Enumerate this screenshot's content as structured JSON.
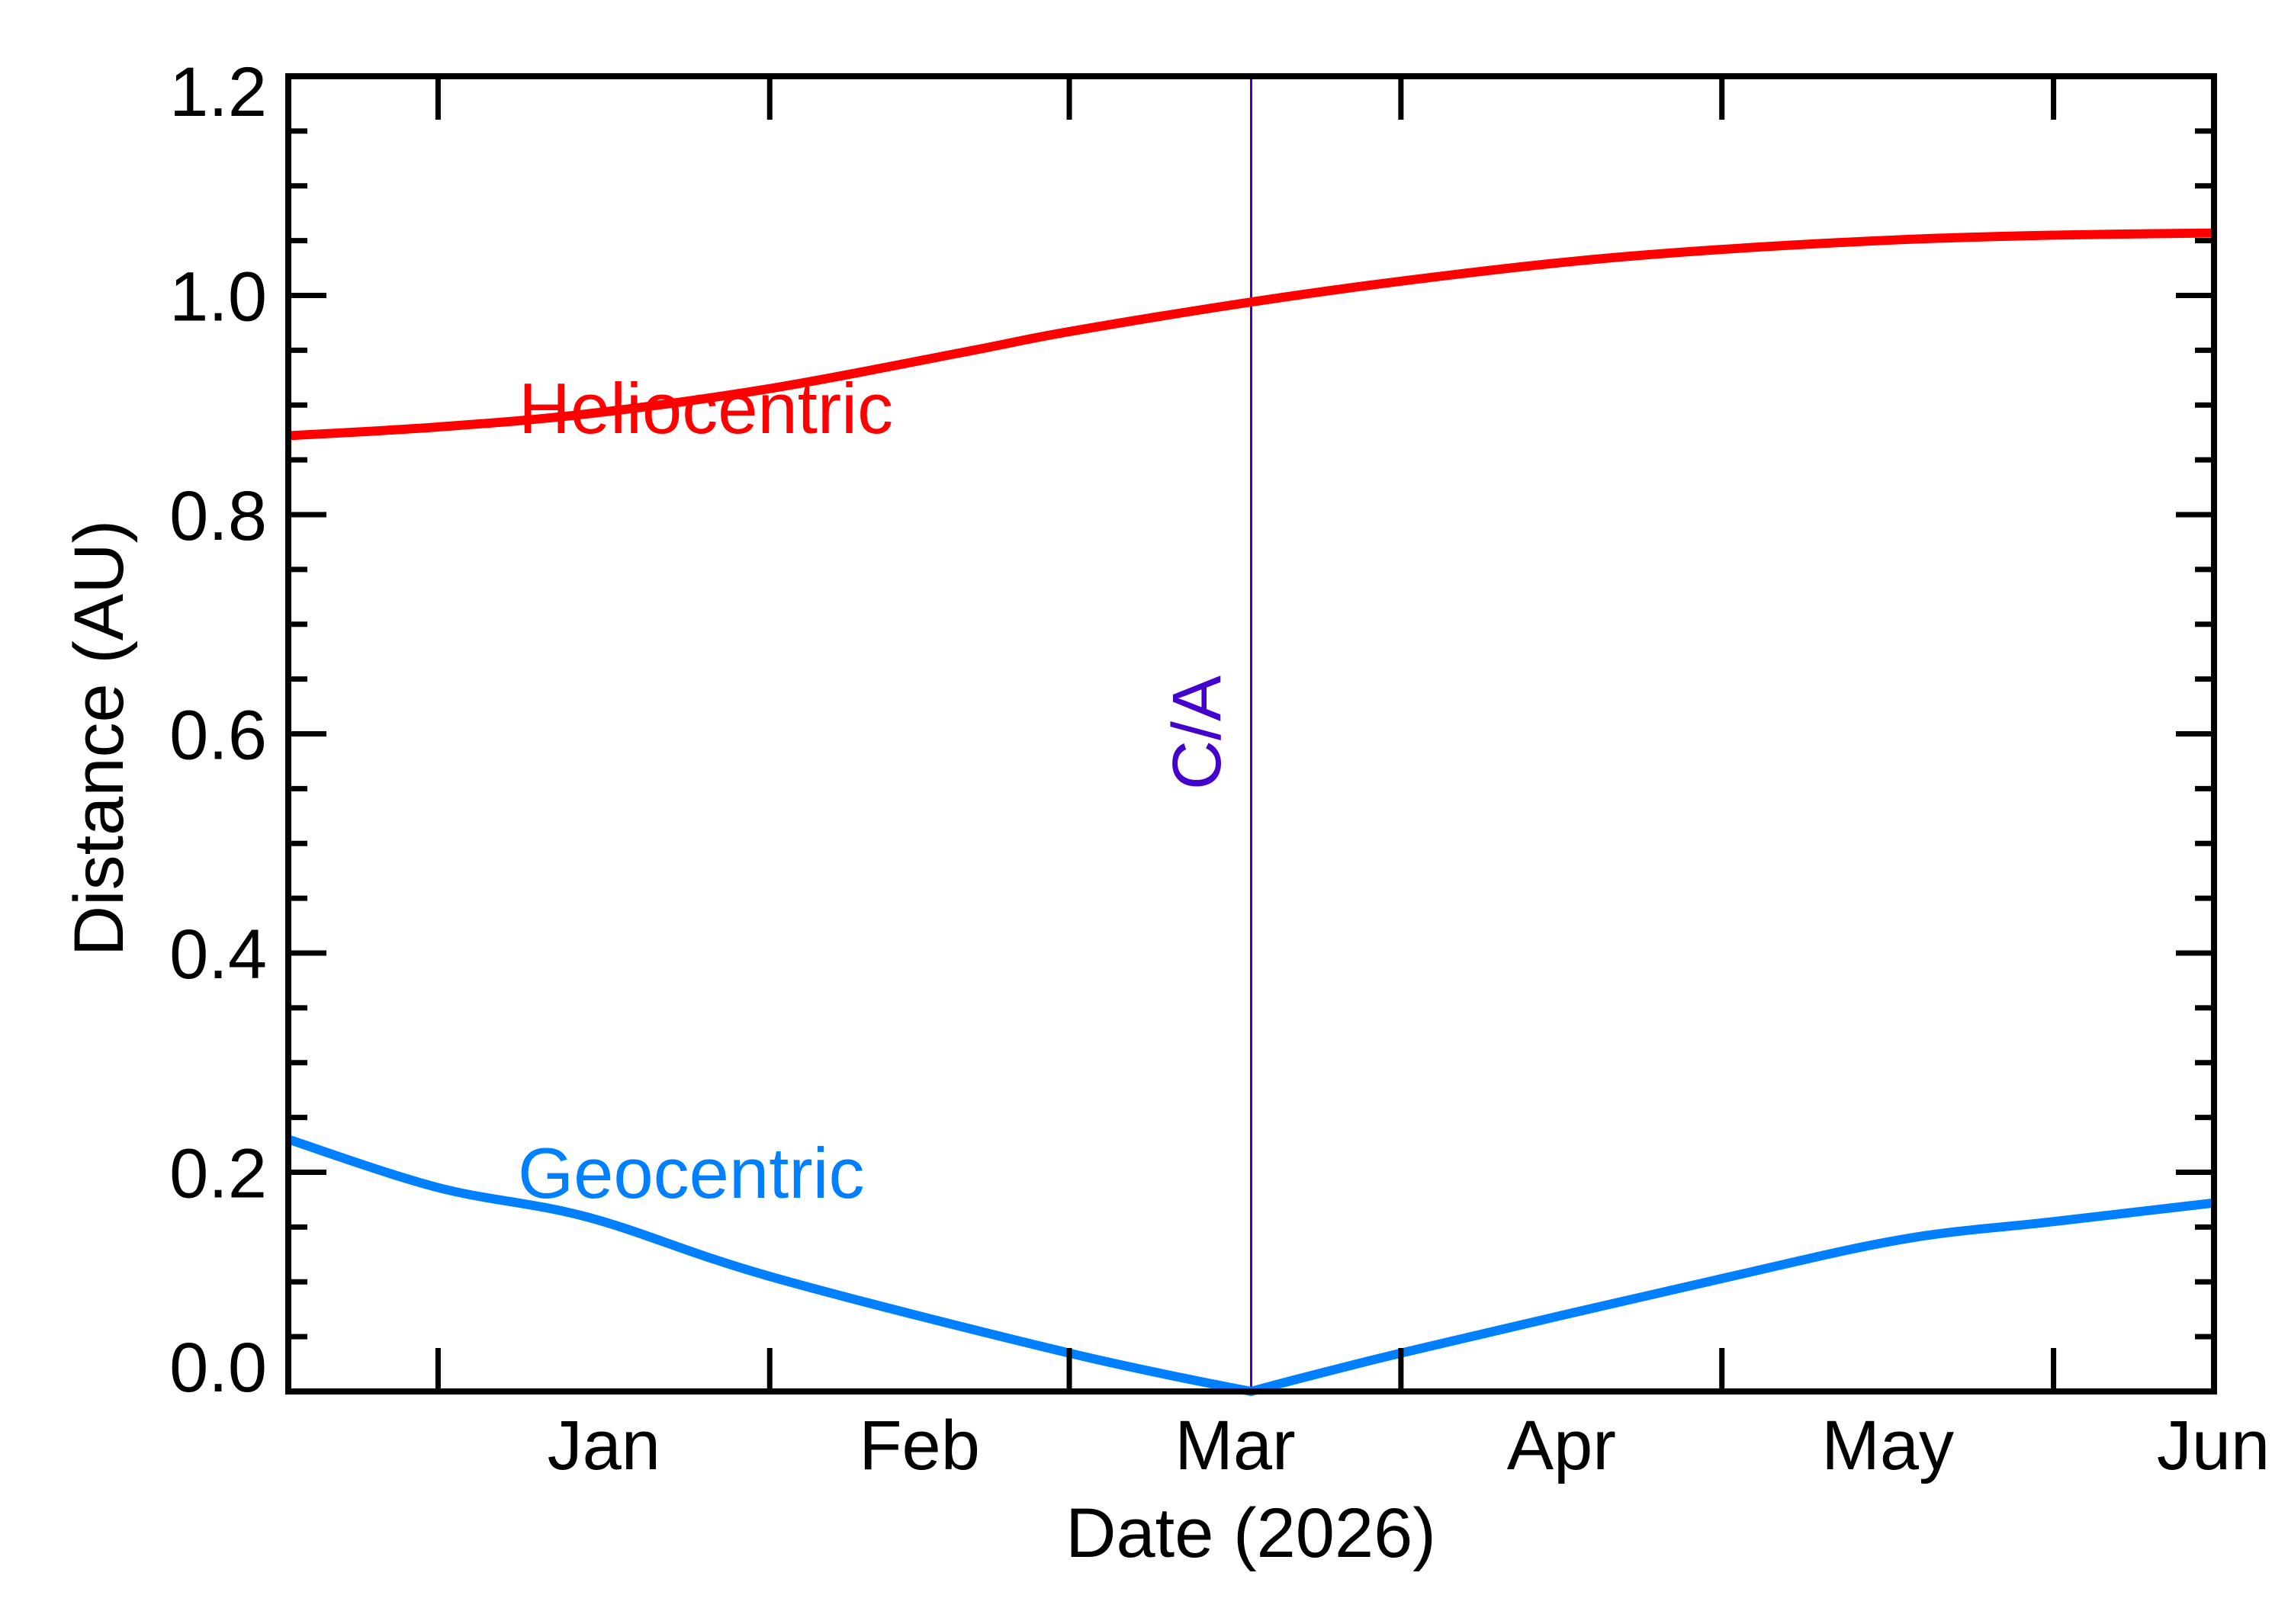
{
  "chart_data": {
    "type": "line",
    "title": "",
    "xlabel": "Date (2026)",
    "ylabel": "Distance (AU)",
    "ylim": [
      0.0,
      1.2
    ],
    "xlim_days_from_jan1": [
      -14,
      166
    ],
    "xlim_dates": [
      "2025-12-18",
      "2026-06-16"
    ],
    "grid": false,
    "legend": "inline labels",
    "y_ticks": [
      "0.0",
      "0.2",
      "0.4",
      "0.6",
      "0.8",
      "1.0",
      "1.2"
    ],
    "y_tick_values": [
      0.0,
      0.2,
      0.4,
      0.6,
      0.8,
      1.0,
      1.2
    ],
    "y_minor_step": 0.05,
    "x_month_ticks_days": [
      0,
      31,
      59,
      90,
      120,
      151
    ],
    "x_month_labels": [
      {
        "label": "Jan",
        "day": 15.5
      },
      {
        "label": "Feb",
        "day": 45
      },
      {
        "label": "Mar",
        "day": 74.5
      },
      {
        "label": "Apr",
        "day": 105
      },
      {
        "label": "May",
        "day": 135.5
      },
      {
        "label": "Jun",
        "day": 166
      }
    ],
    "series": [
      {
        "name": "Heliocentric",
        "color": "#ff0000",
        "x_days": [
          -14,
          0,
          14,
          31,
          49,
          59,
          76,
          90,
          106,
          120,
          137,
          151,
          166
        ],
        "x_dates": [
          "2025-12-18",
          "2026-01-01",
          "2026-01-15",
          "2026-02-01",
          "2026-02-19",
          "2026-03-01",
          "2026-03-18",
          "2026-04-01",
          "2026-04-17",
          "2026-05-01",
          "2026-05-18",
          "2026-06-01",
          "2026-06-16"
        ],
        "values": [
          0.872,
          0.88,
          0.892,
          0.915,
          0.948,
          0.967,
          0.994,
          1.013,
          1.031,
          1.042,
          1.051,
          1.055,
          1.057
        ]
      },
      {
        "name": "Geocentric",
        "color": "#0080ff",
        "x_days": [
          -14,
          0,
          14,
          31,
          59,
          76,
          90,
          120,
          137,
          151,
          166
        ],
        "x_dates": [
          "2025-12-18",
          "2026-01-01",
          "2026-01-15",
          "2026-02-01",
          "2026-03-01",
          "2026-03-18",
          "2026-04-01",
          "2026-05-01",
          "2026-05-18",
          "2026-06-01",
          "2026-06-16"
        ],
        "values": [
          0.23,
          0.186,
          0.159,
          0.105,
          0.035,
          0.0,
          0.035,
          0.103,
          0.139,
          0.155,
          0.172
        ]
      }
    ],
    "annotations": [
      {
        "type": "vline",
        "label": "C/A",
        "day": 76,
        "date": "2026-03-18",
        "color": "#4400cc"
      },
      {
        "type": "text",
        "label": "Heliocentric",
        "day": 7.5,
        "value": 0.875,
        "color": "#ff0000"
      },
      {
        "type": "text",
        "label": "Geocentric",
        "day": 7.5,
        "value": 0.175,
        "color": "#0080ff"
      }
    ]
  },
  "labels": {
    "x_title": "Date (2026)",
    "y_title": "Distance (AU)",
    "ca": "C/A",
    "helio": "Heliocentric",
    "geo": "Geocentric"
  },
  "colors": {
    "axis": "#000000",
    "helio": "#ff0000",
    "geo": "#0080ff",
    "ca": "#4400cc",
    "background": "#ffffff"
  }
}
